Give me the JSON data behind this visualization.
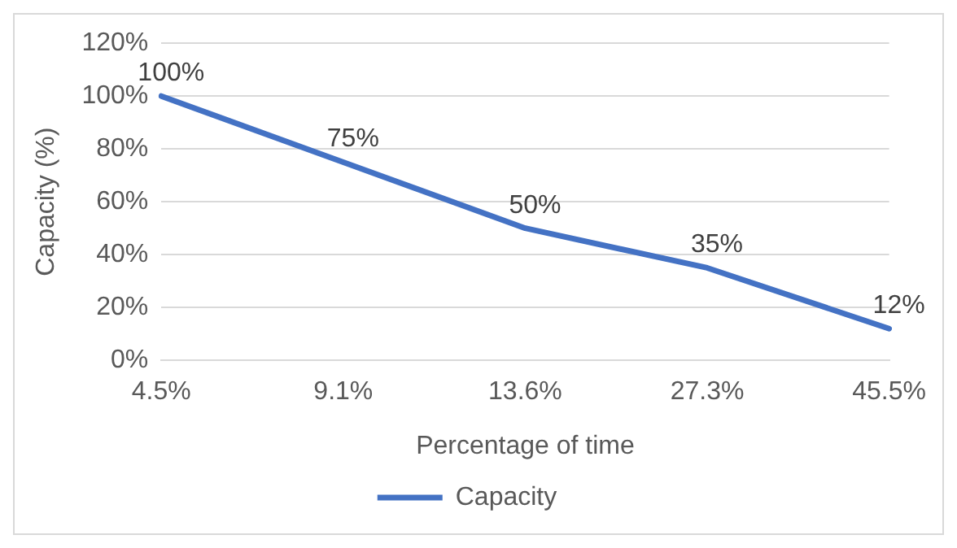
{
  "chart_data": {
    "type": "line",
    "xlabel": "Percentage of time",
    "ylabel": "Capacity (%)",
    "categories": [
      "4.5%",
      "9.1%",
      "13.6%",
      "27.3%",
      "45.5%"
    ],
    "series": [
      {
        "name": "Capacity",
        "color": "#4472c4",
        "values": [
          100,
          75,
          50,
          35,
          12
        ],
        "value_labels": [
          "100%",
          "75%",
          "50%",
          "35%",
          "12%"
        ]
      }
    ],
    "ylim": [
      0,
      120
    ],
    "yticks": [
      {
        "value": 0,
        "label": "0%"
      },
      {
        "value": 20,
        "label": "20%"
      },
      {
        "value": 40,
        "label": "40%"
      },
      {
        "value": 60,
        "label": "60%"
      },
      {
        "value": 80,
        "label": "80%"
      },
      {
        "value": 100,
        "label": "100%"
      },
      {
        "value": 120,
        "label": "120%"
      }
    ],
    "grid": "y",
    "legend": "bottom",
    "marker": "none",
    "line_style": "solid"
  }
}
